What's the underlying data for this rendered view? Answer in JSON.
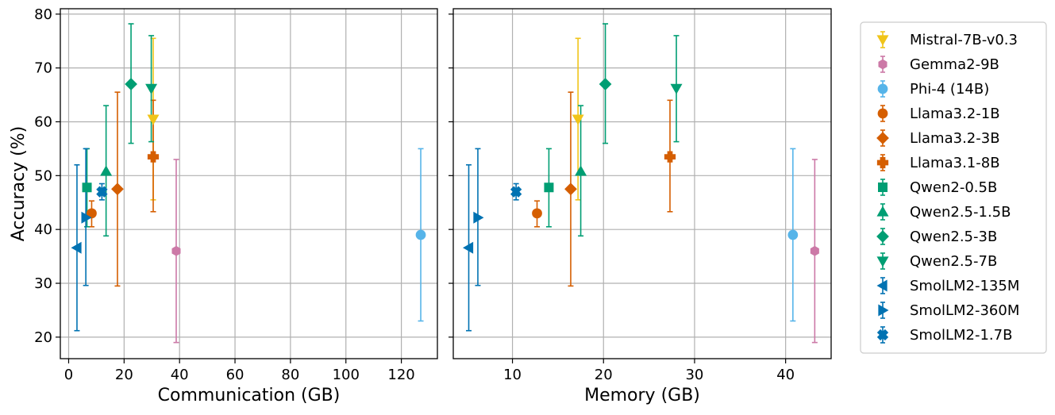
{
  "chart_data": [
    {
      "type": "scatter",
      "xlabel": "Communication (GB)",
      "ylabel": "Accuracy (%)",
      "xlim": [
        -3,
        133
      ],
      "ylim": [
        16,
        81
      ],
      "xticks": [
        0,
        20,
        40,
        60,
        80,
        100,
        120
      ],
      "yticks": [
        20,
        30,
        40,
        50,
        60,
        70,
        80
      ],
      "grid": true,
      "series": [
        {
          "name": "Mistral-7B-v0.3",
          "x": 30.5,
          "y": 60.5,
          "yerr": [
            45.5,
            75.5
          ]
        },
        {
          "name": "Gemma2-9B",
          "x": 38.8,
          "y": 36.0,
          "yerr": [
            19.0,
            53.0
          ]
        },
        {
          "name": "Phi-4 (14B)",
          "x": 127.0,
          "y": 39.0,
          "yerr": [
            23.0,
            55.0
          ]
        },
        {
          "name": "Llama3.2-1B",
          "x": 8.3,
          "y": 43.0,
          "yerr": [
            40.5,
            45.3
          ]
        },
        {
          "name": "Llama3.2-3B",
          "x": 17.6,
          "y": 47.5,
          "yerr": [
            29.5,
            65.5
          ]
        },
        {
          "name": "Llama3.1-8B",
          "x": 30.5,
          "y": 53.5,
          "yerr": [
            43.3,
            64.0
          ]
        },
        {
          "name": "Qwen2-0.5B",
          "x": 6.6,
          "y": 47.8,
          "yerr": [
            40.5,
            55.0
          ]
        },
        {
          "name": "Qwen2.5-1.5B",
          "x": 13.5,
          "y": 50.8,
          "yerr": [
            38.8,
            63.0
          ]
        },
        {
          "name": "Qwen2.5-3B",
          "x": 22.5,
          "y": 67.0,
          "yerr": [
            56.0,
            78.2
          ]
        },
        {
          "name": "Qwen2.5-7B",
          "x": 29.8,
          "y": 66.2,
          "yerr": [
            56.3,
            76.0
          ]
        },
        {
          "name": "SmolLM2-135M",
          "x": 3.0,
          "y": 36.6,
          "yerr": [
            21.2,
            52.0
          ]
        },
        {
          "name": "SmolLM2-360M",
          "x": 6.2,
          "y": 42.2,
          "yerr": [
            29.6,
            55.0
          ]
        },
        {
          "name": "SmolLM2-1.7B",
          "x": 12.0,
          "y": 47.0,
          "yerr": [
            45.5,
            48.5
          ]
        }
      ]
    },
    {
      "type": "scatter",
      "xlabel": "Memory (GB)",
      "ylabel": "",
      "xlim": [
        3.5,
        45
      ],
      "ylim": [
        16,
        81
      ],
      "xticks": [
        10,
        20,
        30,
        40
      ],
      "yticks": [
        20,
        30,
        40,
        50,
        60,
        70,
        80
      ],
      "grid": true,
      "series": [
        {
          "name": "Mistral-7B-v0.3",
          "x": 17.2,
          "y": 60.5,
          "yerr": [
            45.5,
            75.5
          ]
        },
        {
          "name": "Gemma2-9B",
          "x": 43.2,
          "y": 36.0,
          "yerr": [
            19.0,
            53.0
          ]
        },
        {
          "name": "Phi-4 (14B)",
          "x": 40.8,
          "y": 39.0,
          "yerr": [
            23.0,
            55.0
          ]
        },
        {
          "name": "Llama3.2-1B",
          "x": 12.7,
          "y": 43.0,
          "yerr": [
            40.5,
            45.3
          ]
        },
        {
          "name": "Llama3.2-3B",
          "x": 16.4,
          "y": 47.5,
          "yerr": [
            29.5,
            65.5
          ]
        },
        {
          "name": "Llama3.1-8B",
          "x": 27.3,
          "y": 53.5,
          "yerr": [
            43.3,
            64.0
          ]
        },
        {
          "name": "Qwen2-0.5B",
          "x": 14.0,
          "y": 47.8,
          "yerr": [
            40.5,
            55.0
          ]
        },
        {
          "name": "Qwen2.5-1.5B",
          "x": 17.5,
          "y": 50.8,
          "yerr": [
            38.8,
            63.0
          ]
        },
        {
          "name": "Qwen2.5-3B",
          "x": 20.2,
          "y": 67.0,
          "yerr": [
            56.0,
            78.2
          ]
        },
        {
          "name": "Qwen2.5-7B",
          "x": 28.0,
          "y": 66.2,
          "yerr": [
            56.3,
            76.0
          ]
        },
        {
          "name": "SmolLM2-135M",
          "x": 5.2,
          "y": 36.6,
          "yerr": [
            21.2,
            52.0
          ]
        },
        {
          "name": "SmolLM2-360M",
          "x": 6.2,
          "y": 42.2,
          "yerr": [
            29.6,
            55.0
          ]
        },
        {
          "name": "SmolLM2-1.7B",
          "x": 10.4,
          "y": 47.0,
          "yerr": [
            45.5,
            48.5
          ]
        }
      ]
    }
  ],
  "legend": {
    "placement": "outside-right",
    "entries": [
      {
        "label": "Mistral-7B-v0.3",
        "color": "#f0c419",
        "marker": "triangle-down"
      },
      {
        "label": "Gemma2-9B",
        "color": "#cc79a7",
        "marker": "hexagon"
      },
      {
        "label": "Phi-4 (14B)",
        "color": "#56b4e9",
        "marker": "circle"
      },
      {
        "label": "Llama3.2-1B",
        "color": "#d55e00",
        "marker": "circle"
      },
      {
        "label": "Llama3.2-3B",
        "color": "#d55e00",
        "marker": "diamond"
      },
      {
        "label": "Llama3.1-8B",
        "color": "#d55e00",
        "marker": "plus"
      },
      {
        "label": "Qwen2-0.5B",
        "color": "#009e73",
        "marker": "square"
      },
      {
        "label": "Qwen2.5-1.5B",
        "color": "#009e73",
        "marker": "triangle-up"
      },
      {
        "label": "Qwen2.5-3B",
        "color": "#009e73",
        "marker": "diamond"
      },
      {
        "label": "Qwen2.5-7B",
        "color": "#009e73",
        "marker": "triangle-down"
      },
      {
        "label": "SmolLM2-135M",
        "color": "#0072b2",
        "marker": "triangle-left"
      },
      {
        "label": "SmolLM2-360M",
        "color": "#0072b2",
        "marker": "triangle-right"
      },
      {
        "label": "SmolLM2-1.7B",
        "color": "#0072b2",
        "marker": "x"
      }
    ]
  }
}
